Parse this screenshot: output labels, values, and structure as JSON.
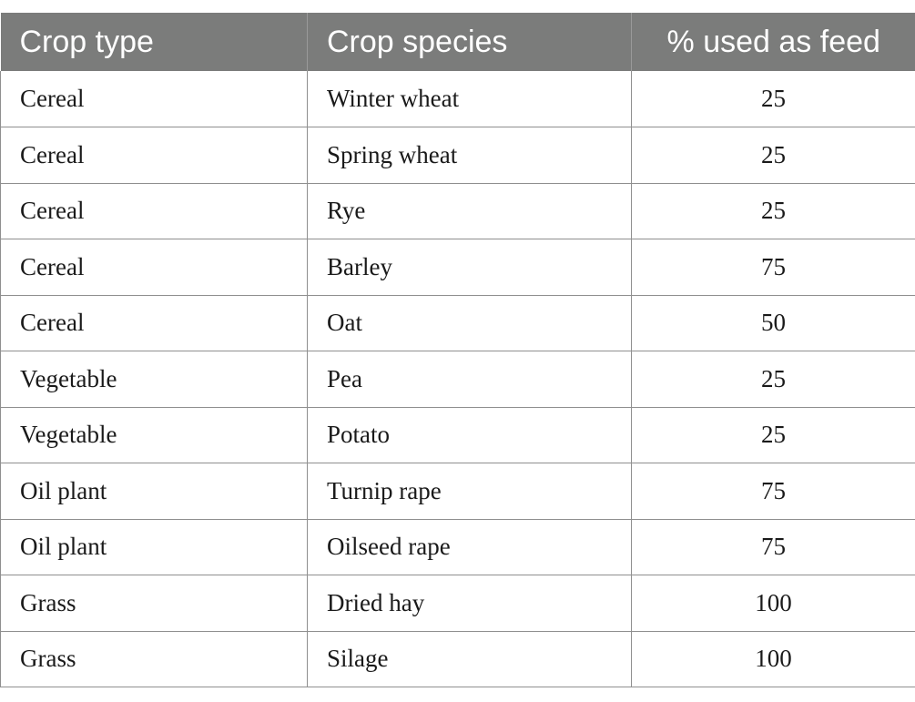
{
  "table": {
    "headers": [
      "Crop type",
      "Crop species",
      "% used as feed"
    ],
    "rows": [
      [
        "Cereal",
        "Winter wheat",
        "25"
      ],
      [
        "Cereal",
        "Spring wheat",
        "25"
      ],
      [
        "Cereal",
        "Rye",
        "25"
      ],
      [
        "Cereal",
        "Barley",
        "75"
      ],
      [
        "Cereal",
        "Oat",
        "50"
      ],
      [
        "Vegetable",
        "Pea",
        "25"
      ],
      [
        "Vegetable",
        "Potato",
        "25"
      ],
      [
        "Oil plant",
        "Turnip rape",
        "75"
      ],
      [
        "Oil plant",
        "Oilseed rape",
        "75"
      ],
      [
        "Grass",
        "Dried hay",
        "100"
      ],
      [
        "Grass",
        "Silage",
        "100"
      ]
    ]
  }
}
